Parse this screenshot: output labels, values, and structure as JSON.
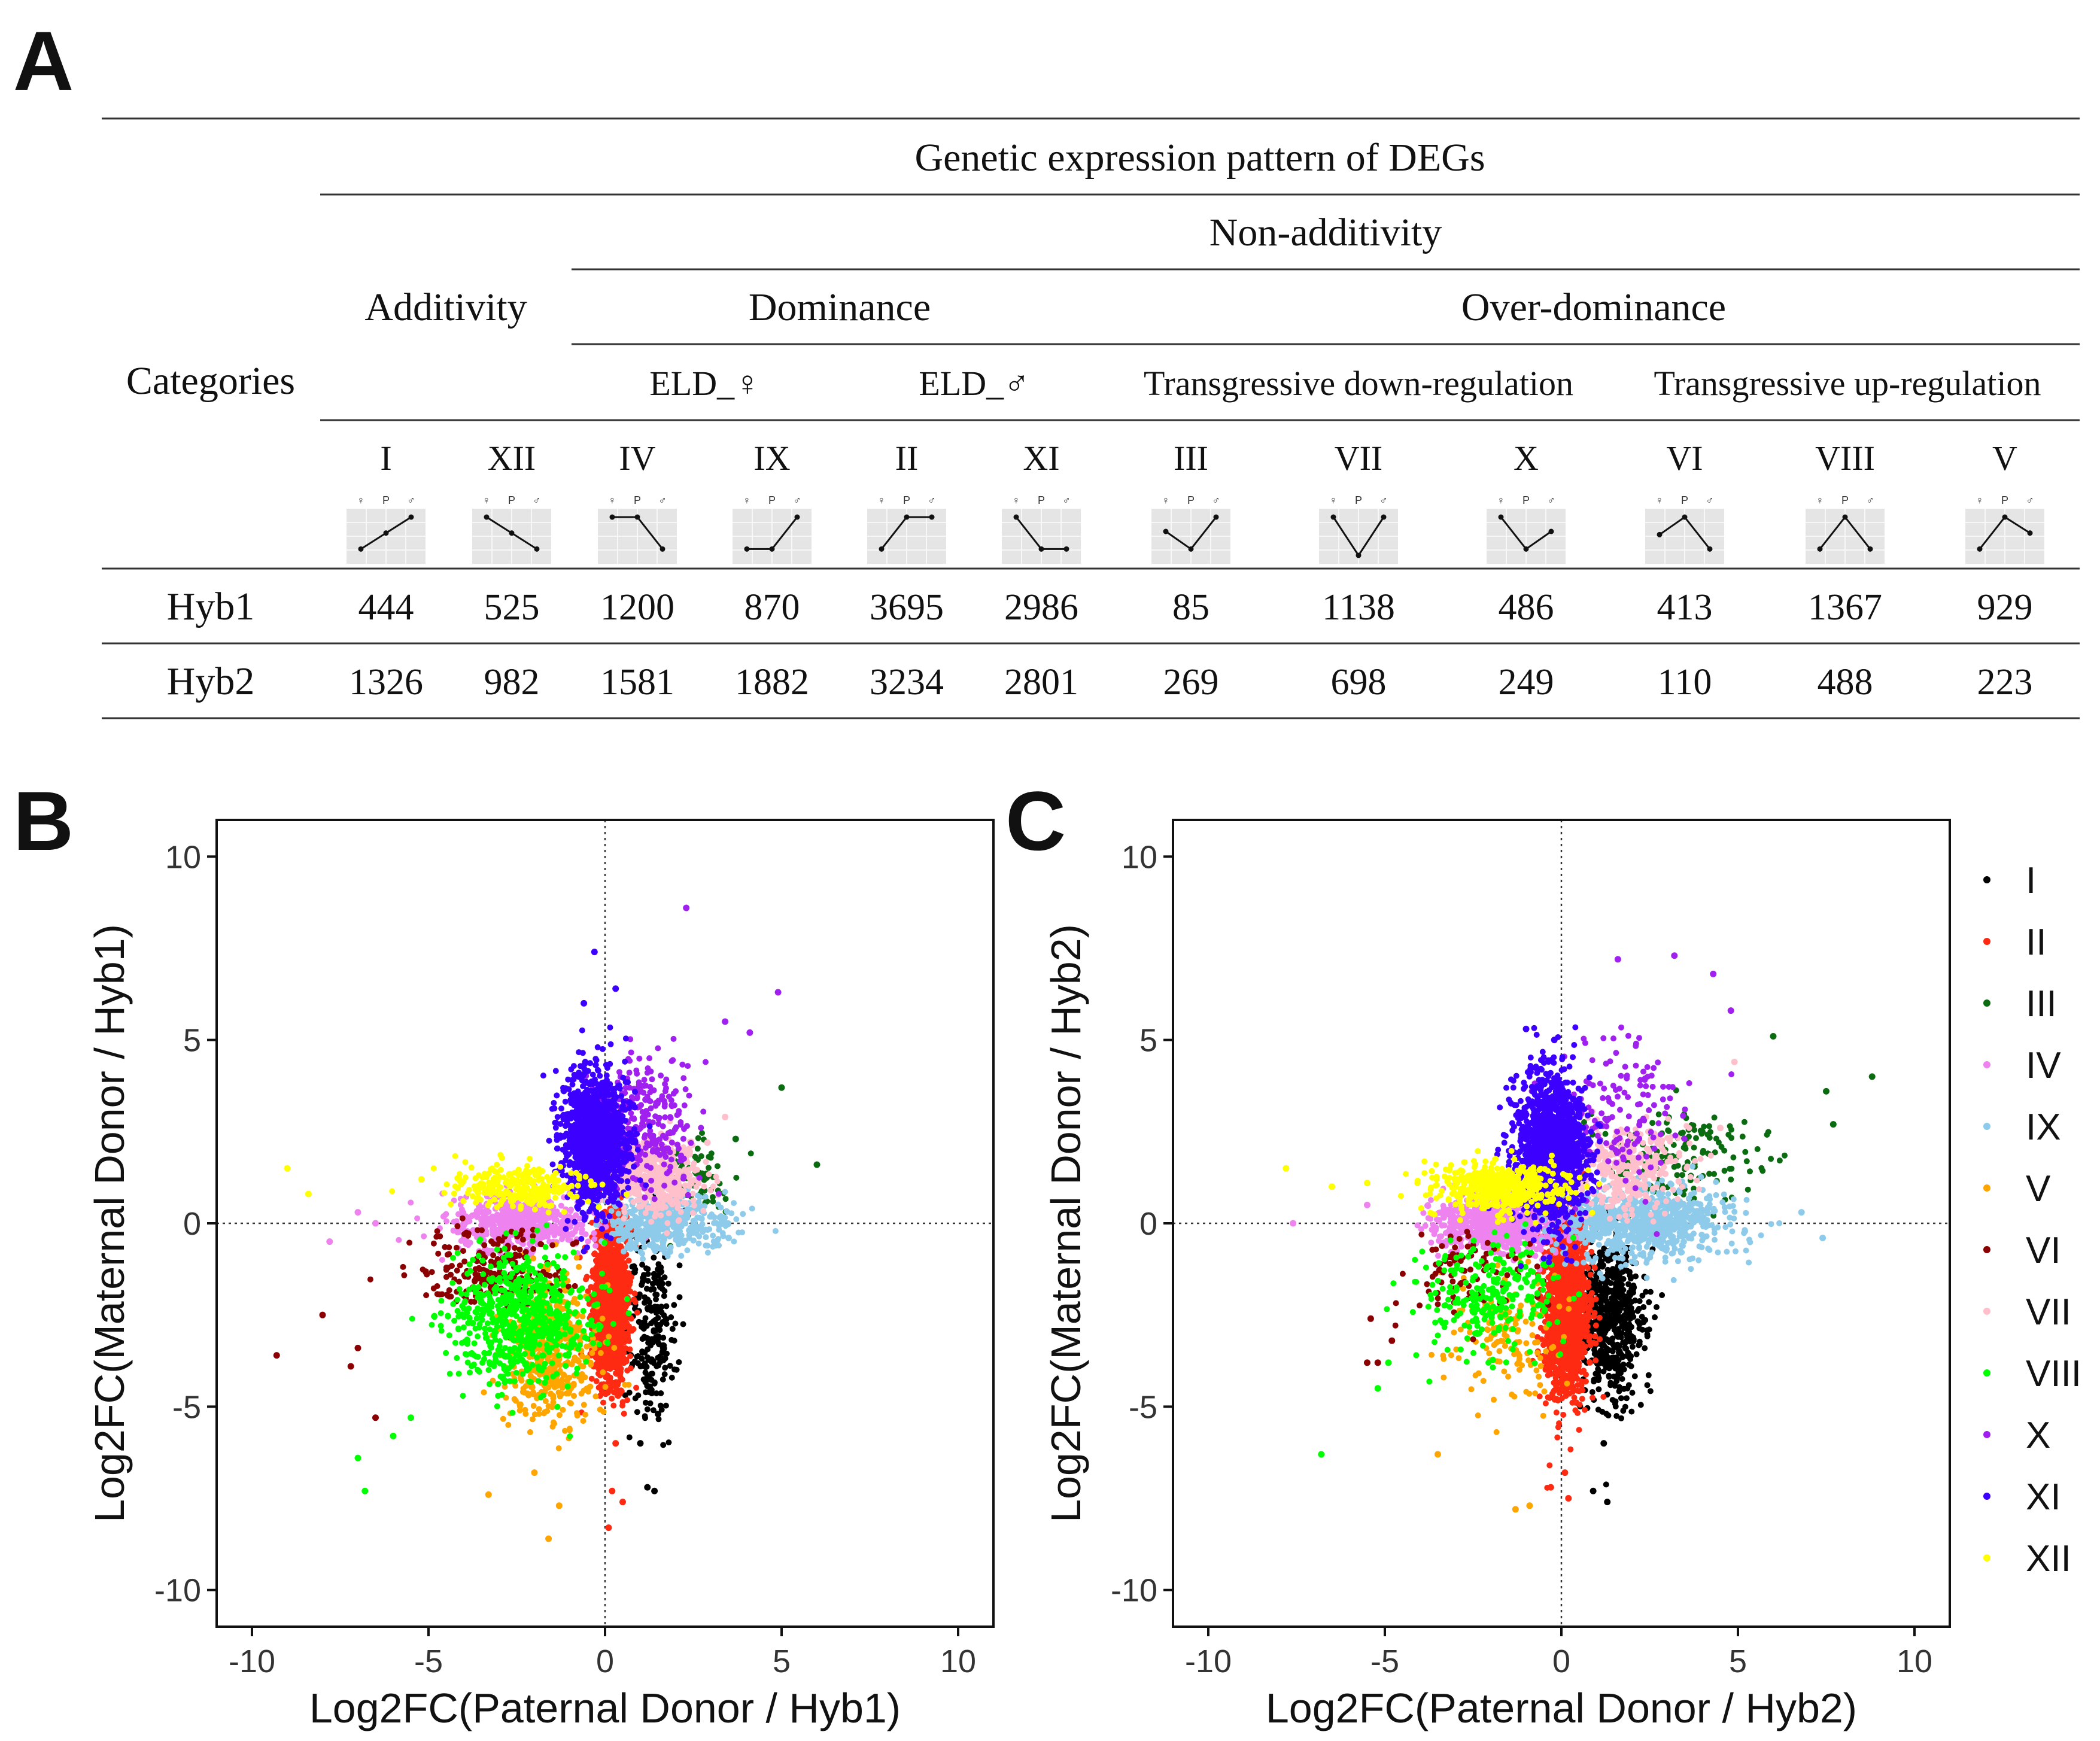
{
  "panels": {
    "a": "A",
    "b": "B",
    "c": "C"
  },
  "table": {
    "title": "Genetic expression pattern of DEGs",
    "row_header": "Categories",
    "additivity": "Additivity",
    "non_additivity": "Non-additivity",
    "dominance": "Dominance",
    "over_dominance": "Over-dominance",
    "eld_female": "ELD_♀",
    "eld_male": "ELD_♂",
    "trans_down": "Transgressive down-regulation",
    "trans_up": "Transgressive up-regulation",
    "icon_labels": {
      "female": "♀",
      "hybrid": "P",
      "male": "♂"
    },
    "classes": [
      "I",
      "XII",
      "IV",
      "IX",
      "II",
      "XI",
      "III",
      "VII",
      "X",
      "VI",
      "VIII",
      "V"
    ],
    "patterns": [
      [
        0,
        0.5,
        1
      ],
      [
        1,
        0.5,
        0
      ],
      [
        1,
        1,
        0
      ],
      [
        0,
        0,
        1
      ],
      [
        0,
        1,
        1
      ],
      [
        1,
        0,
        0
      ],
      [
        0.55,
        0,
        1
      ],
      [
        1,
        -0.2,
        1
      ],
      [
        1,
        0,
        0.55
      ],
      [
        0.45,
        1,
        0
      ],
      [
        0,
        1,
        0
      ],
      [
        0,
        1,
        0.5
      ]
    ],
    "rows": [
      {
        "name": "Hyb1",
        "values": [
          "444",
          "525",
          "1200",
          "870",
          "3695",
          "2986",
          "85",
          "1138",
          "486",
          "413",
          "1367",
          "929"
        ]
      },
      {
        "name": "Hyb2",
        "values": [
          "1326",
          "982",
          "1581",
          "1882",
          "3234",
          "2801",
          "269",
          "698",
          "249",
          "110",
          "488",
          "223"
        ]
      }
    ]
  },
  "legend": [
    {
      "label": "I",
      "color": "#000000"
    },
    {
      "label": "II",
      "color": "#ff2a12"
    },
    {
      "label": "III",
      "color": "#0a6b10"
    },
    {
      "label": "IV",
      "color": "#ee82ee"
    },
    {
      "label": "IX",
      "color": "#8ecbea"
    },
    {
      "label": "V",
      "color": "#ffa500"
    },
    {
      "label": "VI",
      "color": "#8b0000"
    },
    {
      "label": "VII",
      "color": "#ffc0cb"
    },
    {
      "label": "VIII",
      "color": "#00ff00"
    },
    {
      "label": "X",
      "color": "#a020f0"
    },
    {
      "label": "XI",
      "color": "#3c00ff"
    },
    {
      "label": "XII",
      "color": "#ffff00"
    }
  ],
  "chart_data": [
    {
      "type": "scatter",
      "panel": "B",
      "xlabel": "Log2FC(Paternal Donor / Hyb1)",
      "ylabel": "Log2FC(Maternal Donor / Hyb1)",
      "xlim": [
        -11,
        11
      ],
      "ylim": [
        -11,
        11
      ],
      "xticks": [
        -10,
        -5,
        0,
        5,
        10
      ],
      "yticks": [
        -10,
        -5,
        0,
        5,
        10
      ],
      "reference_lines": {
        "x": 0,
        "y": 0,
        "style": "dotted"
      },
      "series": [
        {
          "name": "I",
          "count": 444,
          "cx": 1.3,
          "cy": -2.8,
          "sx": 0.35,
          "sy": 1.3,
          "outliers": [
            [
              1.0,
              -6.0
            ],
            [
              1.2,
              -7.2
            ],
            [
              1.4,
              -7.3
            ],
            [
              1.5,
              -5.2
            ]
          ]
        },
        {
          "name": "II",
          "count": 3695,
          "cx": 0.15,
          "cy": -2.2,
          "sx": 0.25,
          "sy": 1.1,
          "outliers": [
            [
              0.3,
              -6.0
            ],
            [
              0.2,
              -7.3
            ],
            [
              0.5,
              -7.6
            ],
            [
              0.1,
              -8.3
            ]
          ]
        },
        {
          "name": "III",
          "count": 85,
          "cx": 2.6,
          "cy": 1.3,
          "sx": 0.5,
          "sy": 0.55,
          "outliers": [
            [
              3.7,
              2.3
            ],
            [
              5.0,
              3.7
            ],
            [
              6.0,
              1.6
            ]
          ]
        },
        {
          "name": "IV",
          "count": 1200,
          "cx": -2.4,
          "cy": 0.0,
          "sx": 1.0,
          "sy": 0.35,
          "outliers": [
            [
              -7.0,
              0.3
            ],
            [
              -7.8,
              -0.5
            ],
            [
              -6.5,
              0.0
            ]
          ]
        },
        {
          "name": "IX",
          "count": 870,
          "cx": 1.7,
          "cy": 0.0,
          "sx": 0.8,
          "sy": 0.4,
          "outliers": [
            [
              3.3,
              0.0
            ],
            [
              3.5,
              -0.4
            ]
          ]
        },
        {
          "name": "V",
          "count": 929,
          "cx": -1.6,
          "cy": -3.5,
          "sx": 0.7,
          "sy": 1.0,
          "outliers": [
            [
              -1.6,
              -8.6
            ],
            [
              -2.0,
              -6.8
            ],
            [
              -3.3,
              -7.4
            ],
            [
              -1.3,
              -7.7
            ]
          ]
        },
        {
          "name": "VI",
          "count": 413,
          "cx": -3.2,
          "cy": -1.3,
          "sx": 1.0,
          "sy": 0.6,
          "outliers": [
            [
              -9.3,
              -3.6
            ],
            [
              -7.0,
              -3.4
            ],
            [
              -7.2,
              -3.9
            ],
            [
              -6.5,
              -5.3
            ],
            [
              -8.0,
              -2.5
            ]
          ]
        },
        {
          "name": "VII",
          "count": 1138,
          "cx": 1.4,
          "cy": 1.3,
          "sx": 0.6,
          "sy": 0.5,
          "outliers": [
            [
              2.9,
              2.2
            ],
            [
              3.4,
              2.9
            ]
          ]
        },
        {
          "name": "VIII",
          "count": 1367,
          "cx": -2.4,
          "cy": -2.7,
          "sx": 1.0,
          "sy": 0.9,
          "outliers": [
            [
              -6.8,
              -7.3
            ],
            [
              -7.0,
              -6.4
            ],
            [
              -6.0,
              -5.8
            ],
            [
              -5.5,
              -5.3
            ]
          ]
        },
        {
          "name": "X",
          "count": 486,
          "cx": 1.2,
          "cy": 2.7,
          "sx": 0.7,
          "sy": 0.9,
          "outliers": [
            [
              2.3,
              8.6
            ],
            [
              4.9,
              6.3
            ],
            [
              4.1,
              5.2
            ],
            [
              3.4,
              5.5
            ]
          ]
        },
        {
          "name": "XI",
          "count": 2986,
          "cx": -0.3,
          "cy": 2.3,
          "sx": 0.45,
          "sy": 0.9,
          "outliers": [
            [
              -0.3,
              7.4
            ],
            [
              -0.6,
              6.0
            ],
            [
              0.3,
              6.4
            ]
          ]
        },
        {
          "name": "XII",
          "count": 525,
          "cx": -2.4,
          "cy": 1.0,
          "sx": 1.0,
          "sy": 0.3,
          "outliers": [
            [
              -8.4,
              0.8
            ],
            [
              -9.0,
              1.5
            ],
            [
              -5.2,
              1.2
            ]
          ]
        }
      ]
    },
    {
      "type": "scatter",
      "panel": "C",
      "xlabel": "Log2FC(Paternal Donor / Hyb2)",
      "ylabel": "Log2FC(Maternal Donor / Hyb2)",
      "xlim": [
        -11,
        11
      ],
      "ylim": [
        -11,
        11
      ],
      "xticks": [
        -10,
        -5,
        0,
        5,
        10
      ],
      "yticks": [
        -10,
        -5,
        0,
        5,
        10
      ],
      "reference_lines": {
        "x": 0,
        "y": 0,
        "style": "dotted"
      },
      "series": [
        {
          "name": "I",
          "count": 1326,
          "cx": 1.4,
          "cy": -2.6,
          "sx": 0.45,
          "sy": 1.1,
          "outliers": [
            [
              1.3,
              -7.6
            ],
            [
              0.9,
              -7.3
            ],
            [
              1.2,
              -6.0
            ]
          ]
        },
        {
          "name": "II",
          "count": 3234,
          "cx": 0.15,
          "cy": -2.2,
          "sx": 0.3,
          "sy": 1.2,
          "outliers": [
            [
              0.1,
              -6.8
            ],
            [
              0.2,
              -7.5
            ],
            [
              -0.3,
              -7.2
            ]
          ]
        },
        {
          "name": "III",
          "count": 269,
          "cx": 3.2,
          "cy": 1.8,
          "sx": 1.2,
          "sy": 0.7,
          "outliers": [
            [
              7.7,
              2.7
            ],
            [
              7.5,
              3.6
            ],
            [
              8.8,
              4.0
            ],
            [
              6.0,
              5.1
            ]
          ]
        },
        {
          "name": "IV",
          "count": 1581,
          "cx": -1.8,
          "cy": 0.0,
          "sx": 0.9,
          "sy": 0.4,
          "outliers": [
            [
              -7.6,
              0.0
            ],
            [
              -5.5,
              0.5
            ]
          ]
        },
        {
          "name": "IX",
          "count": 1882,
          "cx": 2.3,
          "cy": 0.0,
          "sx": 1.2,
          "sy": 0.45,
          "outliers": [
            [
              7.4,
              -0.4
            ],
            [
              6.8,
              0.3
            ]
          ]
        },
        {
          "name": "V",
          "count": 223,
          "cx": -1.6,
          "cy": -3.0,
          "sx": 0.7,
          "sy": 1.0,
          "outliers": [
            [
              -0.9,
              -7.7
            ],
            [
              -3.5,
              -6.3
            ],
            [
              -1.3,
              -7.8
            ]
          ]
        },
        {
          "name": "VI",
          "count": 110,
          "cx": -2.6,
          "cy": -1.2,
          "sx": 0.9,
          "sy": 0.6,
          "outliers": [
            [
              -5.5,
              -3.8
            ],
            [
              -5.2,
              -3.8
            ],
            [
              -5.4,
              -2.6
            ],
            [
              -4.8,
              -3.2
            ]
          ]
        },
        {
          "name": "VII",
          "count": 698,
          "cx": 1.9,
          "cy": 1.5,
          "sx": 0.8,
          "sy": 0.6,
          "outliers": [
            [
              4.9,
              4.4
            ],
            [
              4.5,
              2.6
            ]
          ]
        },
        {
          "name": "VIII",
          "count": 488,
          "cx": -2.0,
          "cy": -2.0,
          "sx": 1.0,
          "sy": 0.8,
          "outliers": [
            [
              -6.8,
              -6.3
            ],
            [
              -5.2,
              -4.5
            ],
            [
              -4.9,
              -3.8
            ]
          ]
        },
        {
          "name": "X",
          "count": 249,
          "cx": 1.5,
          "cy": 3.0,
          "sx": 0.9,
          "sy": 1.0,
          "outliers": [
            [
              3.2,
              7.3
            ],
            [
              1.6,
              7.2
            ],
            [
              4.8,
              5.8
            ],
            [
              4.3,
              6.8
            ]
          ]
        },
        {
          "name": "XI",
          "count": 2801,
          "cx": -0.3,
          "cy": 2.0,
          "sx": 0.5,
          "sy": 1.0,
          "outliers": [
            [
              -0.2,
              5.0
            ],
            [
              -1.0,
              5.3
            ]
          ]
        },
        {
          "name": "XII",
          "count": 982,
          "cx": -1.8,
          "cy": 1.0,
          "sx": 0.9,
          "sy": 0.35,
          "outliers": [
            [
              -7.8,
              1.5
            ],
            [
              -6.5,
              1.0
            ],
            [
              -5.5,
              1.1
            ]
          ]
        }
      ]
    }
  ]
}
